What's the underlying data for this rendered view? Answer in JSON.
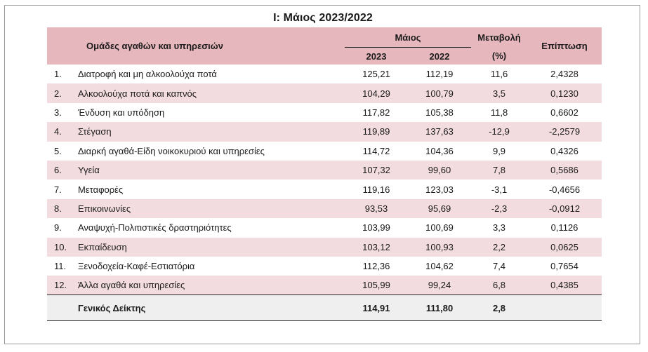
{
  "title": "I: Μάιος 2023/2022",
  "header": {
    "group_label": "Ομάδες αγαθών και υπηρεσιών",
    "month_label": "Μάιος",
    "year_current": "2023",
    "year_previous": "2022",
    "change_label": "Μεταβολή",
    "change_unit": "(%)",
    "impact_label": "Επίπτωση"
  },
  "rows": [
    {
      "num": "1.",
      "name": "Διατροφή και μη αλκοολούχα ποτά",
      "v2023": "125,21",
      "v2022": "112,19",
      "change": "11,6",
      "impact": "2,4328"
    },
    {
      "num": "2.",
      "name": "Αλκοολούχα ποτά και καπνός",
      "v2023": "104,29",
      "v2022": "100,79",
      "change": "3,5",
      "impact": "0,1230"
    },
    {
      "num": "3.",
      "name": "Ένδυση και υπόδηση",
      "v2023": "117,82",
      "v2022": "105,38",
      "change": "11,8",
      "impact": "0,6602"
    },
    {
      "num": "4.",
      "name": "Στέγαση",
      "v2023": "119,89",
      "v2022": "137,63",
      "change": "-12,9",
      "impact": "-2,2579"
    },
    {
      "num": "5.",
      "name": "Διαρκή αγαθά-Είδη νοικοκυριού και υπηρεσίες",
      "v2023": "114,72",
      "v2022": "104,36",
      "change": "9,9",
      "impact": "0,4326"
    },
    {
      "num": "6.",
      "name": "Υγεία",
      "v2023": "107,32",
      "v2022": "99,60",
      "change": "7,8",
      "impact": "0,5686"
    },
    {
      "num": "7.",
      "name": "Μεταφορές",
      "v2023": "119,16",
      "v2022": "123,03",
      "change": "-3,1",
      "impact": "-0,4656"
    },
    {
      "num": "8.",
      "name": "Επικοινωνίες",
      "v2023": "93,53",
      "v2022": "95,69",
      "change": "-2,3",
      "impact": "-0,0912"
    },
    {
      "num": "9.",
      "name": "Αναψυχή-Πολιτιστικές δραστηριότητες",
      "v2023": "103,99",
      "v2022": "100,69",
      "change": "3,3",
      "impact": "0,1126"
    },
    {
      "num": "10.",
      "name": "Εκπαίδευση",
      "v2023": "103,12",
      "v2022": "100,93",
      "change": "2,2",
      "impact": "0,0625"
    },
    {
      "num": "11.",
      "name": "Ξενοδοχεία-Καφέ-Εστιατόρια",
      "v2023": "112,36",
      "v2022": "104,62",
      "change": "7,4",
      "impact": "0,7654"
    },
    {
      "num": "12.",
      "name": "Άλλα αγαθά και υπηρεσίες",
      "v2023": "105,99",
      "v2022": "99,24",
      "change": "6,8",
      "impact": "0,4385"
    }
  ],
  "total": {
    "name": "Γενικός Δείκτης",
    "v2023": "114,91",
    "v2022": "111,80",
    "change": "2,8",
    "impact": ""
  },
  "colors": {
    "header_bg": "#e6b8bd",
    "stripe_bg": "#f3dcdf",
    "total_bg": "#efefef"
  }
}
